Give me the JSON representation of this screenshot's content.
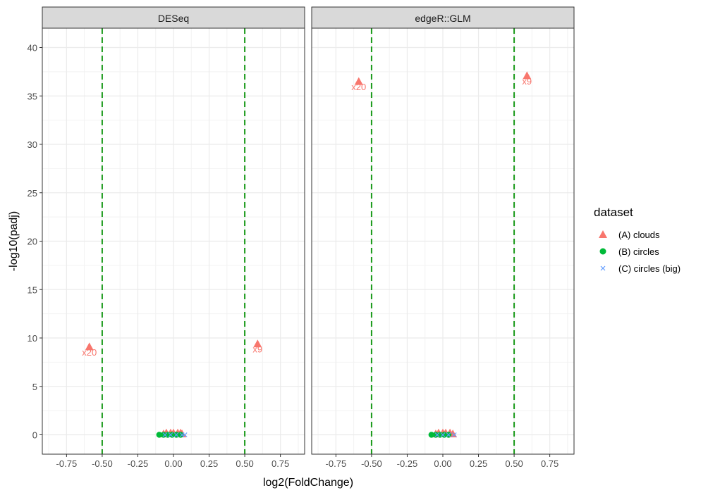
{
  "chart_data": {
    "type": "scatter",
    "xlabel": "log2(FoldChange)",
    "ylabel": "-log10(padj)",
    "xlim": [
      -0.92,
      0.92
    ],
    "ylim": [
      -2,
      42
    ],
    "x_ticks": [
      -0.75,
      -0.5,
      -0.25,
      0.0,
      0.25,
      0.5,
      0.75
    ],
    "x_tick_labels": [
      "-0.75",
      "-0.50",
      "-0.25",
      "0.00",
      "0.25",
      "0.50",
      "0.75"
    ],
    "y_ticks": [
      0,
      5,
      10,
      15,
      20,
      25,
      30,
      35,
      40
    ],
    "y_tick_labels": [
      "0",
      "5",
      "10",
      "15",
      "20",
      "25",
      "30",
      "35",
      "40"
    ],
    "grid": true,
    "threshold_lines": {
      "x": [
        -0.5,
        0.5
      ],
      "color": "#1a9a1a",
      "style": "dashed"
    },
    "legend": {
      "title": "dataset",
      "position": "right",
      "entries": [
        {
          "label": "(A) clouds",
          "shape": "triangle",
          "color": "#F8766D"
        },
        {
          "label": "(B) circles",
          "shape": "circle",
          "color": "#00BA38"
        },
        {
          "label": "(C) circles (big)",
          "shape": "cross",
          "color": "#619CFF"
        }
      ]
    },
    "panels": [
      {
        "title": "DESeq",
        "series": [
          {
            "name": "(A) clouds",
            "points": [
              [
                -0.59,
                9.1
              ],
              [
                0.59,
                9.4
              ],
              [
                -0.05,
                0.2
              ],
              [
                -0.02,
                0.2
              ],
              [
                0.0,
                0.2
              ],
              [
                0.03,
                0.2
              ],
              [
                0.05,
                0.2
              ],
              [
                -0.07,
                0.1
              ],
              [
                0.06,
                0.1
              ]
            ]
          },
          {
            "name": "(B) circles",
            "points": [
              [
                -0.1,
                0.0
              ],
              [
                -0.07,
                0.0
              ],
              [
                -0.04,
                0.0
              ],
              [
                -0.01,
                0.0
              ],
              [
                0.02,
                0.0
              ],
              [
                0.05,
                0.0
              ]
            ]
          },
          {
            "name": "(C) circles (big)",
            "points": [
              [
                -0.06,
                0.0
              ],
              [
                -0.02,
                0.0
              ],
              [
                0.02,
                0.0
              ],
              [
                0.06,
                0.0
              ],
              [
                0.08,
                0.0
              ]
            ]
          }
        ],
        "labels": [
          {
            "text": "x20",
            "x": -0.59,
            "y": 8.2
          },
          {
            "text": "x9",
            "x": 0.59,
            "y": 8.5
          }
        ]
      },
      {
        "title": "edgeR::GLM",
        "series": [
          {
            "name": "(A) clouds",
            "points": [
              [
                -0.59,
                36.5
              ],
              [
                0.59,
                37.1
              ],
              [
                -0.03,
                0.2
              ],
              [
                0.0,
                0.2
              ],
              [
                0.02,
                0.2
              ],
              [
                0.05,
                0.2
              ],
              [
                -0.05,
                0.1
              ],
              [
                0.07,
                0.1
              ]
            ]
          },
          {
            "name": "(B) circles",
            "points": [
              [
                -0.08,
                0.0
              ],
              [
                -0.05,
                0.0
              ],
              [
                -0.02,
                0.0
              ],
              [
                0.01,
                0.0
              ],
              [
                0.04,
                0.0
              ]
            ]
          },
          {
            "name": "(C) circles (big)",
            "points": [
              [
                -0.04,
                0.0
              ],
              [
                0.0,
                0.0
              ],
              [
                0.04,
                0.0
              ],
              [
                0.08,
                0.0
              ]
            ]
          }
        ],
        "labels": [
          {
            "text": "x20",
            "x": -0.59,
            "y": 35.6
          },
          {
            "text": "x9",
            "x": 0.59,
            "y": 36.2
          }
        ]
      }
    ]
  }
}
